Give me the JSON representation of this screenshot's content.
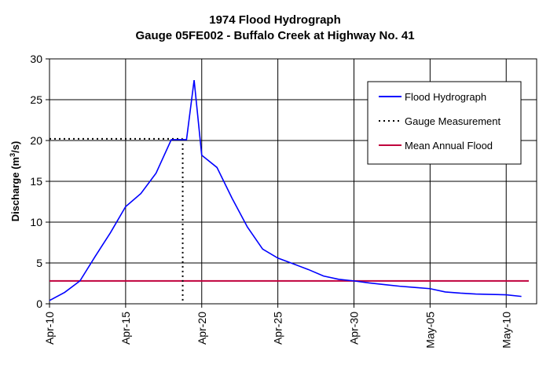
{
  "chart_data": {
    "type": "line",
    "title": "1974 Flood Hydrograph",
    "subtitle": "Gauge 05FE002 - Buffalo Creek at Highway No. 41",
    "ylabel_main": "Discharge (m",
    "ylabel_sup": "3",
    "ylabel_end": "/s)",
    "xlabel": "",
    "ylim": [
      0,
      30
    ],
    "yticks": [
      0,
      5,
      10,
      15,
      20,
      25,
      30
    ],
    "x_start_label": "Apr-10",
    "xlim_days": [
      0,
      32
    ],
    "xticks": [
      {
        "label": "Apr-10",
        "day": 0
      },
      {
        "label": "Apr-15",
        "day": 5
      },
      {
        "label": "Apr-20",
        "day": 10
      },
      {
        "label": "Apr-25",
        "day": 15
      },
      {
        "label": "Apr-30",
        "day": 20
      },
      {
        "label": "May-05",
        "day": 25
      },
      {
        "label": "May-10",
        "day": 30
      }
    ],
    "grid": true,
    "legend_position": "top-right",
    "series": [
      {
        "name": "Flood Hydrograph",
        "color": "#0000ff",
        "style": "solid",
        "points": [
          [
            "Apr-10",
            0.4
          ],
          [
            "Apr-11",
            1.4
          ],
          [
            "Apr-12",
            2.8
          ],
          [
            "Apr-13",
            5.8
          ],
          [
            "Apr-14",
            8.7
          ],
          [
            "Apr-15",
            11.9
          ],
          [
            "Apr-16",
            13.5
          ],
          [
            "Apr-17",
            16.0
          ],
          [
            "Apr-18",
            20.1
          ],
          [
            "Apr-19",
            20.1
          ],
          [
            "Apr-19 12:00",
            27.4
          ],
          [
            "Apr-20",
            18.2
          ],
          [
            "Apr-21",
            16.7
          ],
          [
            "Apr-22",
            12.9
          ],
          [
            "Apr-23",
            9.4
          ],
          [
            "Apr-24",
            6.7
          ],
          [
            "Apr-25",
            5.6
          ],
          [
            "Apr-26",
            4.9
          ],
          [
            "Apr-27",
            4.2
          ],
          [
            "Apr-28",
            3.4
          ],
          [
            "Apr-29",
            3.0
          ],
          [
            "Apr-30",
            2.8
          ],
          [
            "May-01",
            2.55
          ],
          [
            "May-02",
            2.35
          ],
          [
            "May-03",
            2.15
          ],
          [
            "May-04",
            2.0
          ],
          [
            "May-05",
            1.85
          ],
          [
            "May-06",
            1.45
          ],
          [
            "May-07",
            1.3
          ],
          [
            "May-08",
            1.2
          ],
          [
            "May-09",
            1.15
          ],
          [
            "May-10",
            1.1
          ],
          [
            "May-11",
            0.9
          ]
        ]
      },
      {
        "name": "Gauge Measurement",
        "color": "#000000",
        "style": "dotted",
        "date": "Apr-18 18:00",
        "value": 20.2
      },
      {
        "name": "Mean Annual Flood",
        "color": "#c0003c",
        "style": "solid",
        "value": 2.8
      }
    ]
  }
}
